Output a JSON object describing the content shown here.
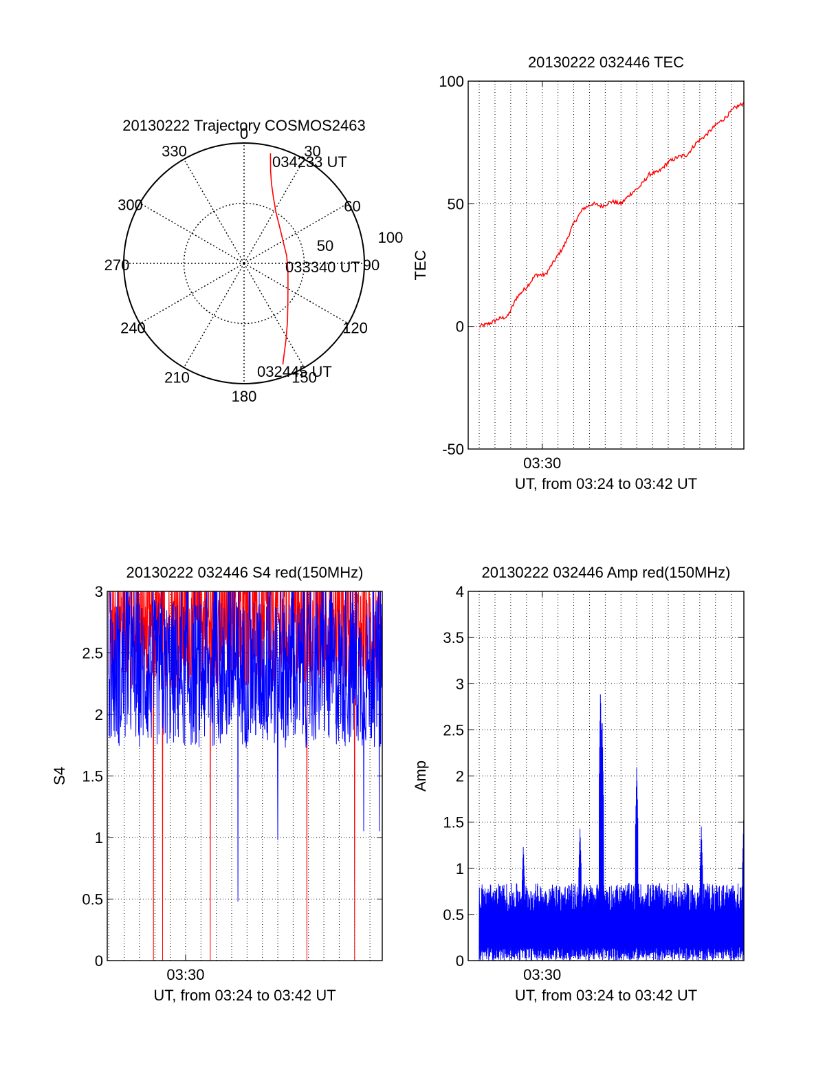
{
  "chart_data": [
    {
      "id": "polar",
      "type": "polar-trajectory",
      "title": "20130222 Trajectory COSMOS2463",
      "azimuth_labels": [
        "0",
        "30",
        "60",
        "90",
        "120",
        "150",
        "180",
        "210",
        "240",
        "270",
        "300",
        "330"
      ],
      "azimuth_values": [
        0,
        30,
        60,
        90,
        120,
        150,
        180,
        210,
        240,
        270,
        300,
        330
      ],
      "radial_labels": [
        "50",
        "100"
      ],
      "radial_values": [
        50,
        100
      ],
      "trajectory": {
        "color": "#ff0000",
        "points": [
          {
            "az": 13.5,
            "r": 94
          },
          {
            "az": 16.0,
            "r": 80
          },
          {
            "az": 19.0,
            "r": 70
          },
          {
            "az": 24.0,
            "r": 60
          },
          {
            "az": 32.0,
            "r": 50
          },
          {
            "az": 45.0,
            "r": 42
          },
          {
            "az": 62.0,
            "r": 37
          },
          {
            "az": 80.0,
            "r": 36
          },
          {
            "az": 100.0,
            "r": 37
          },
          {
            "az": 117.0,
            "r": 41
          },
          {
            "az": 132.0,
            "r": 49
          },
          {
            "az": 143.0,
            "r": 60
          },
          {
            "az": 151.0,
            "r": 72
          },
          {
            "az": 156.0,
            "r": 82
          },
          {
            "az": 159.0,
            "r": 90
          }
        ]
      },
      "annotations": [
        {
          "text": "034233 UT",
          "az": 16,
          "r": 88
        },
        {
          "text": "033340 UT",
          "az": 95,
          "r": 38
        },
        {
          "text": "032445 UT",
          "az": 160,
          "r": 95
        }
      ]
    },
    {
      "id": "tec",
      "type": "line",
      "title": "20130222 032446 TEC",
      "ylabel": "TEC",
      "xlabel": "UT, from 03:24 to 03:42 UT",
      "ylim": [
        -50,
        100
      ],
      "yticks": [
        "-50",
        "0",
        "50",
        "100"
      ],
      "ytick_values": [
        -50,
        0,
        50,
        100
      ],
      "xtick_label": "03:30",
      "xlim_minutes": [
        25.3,
        42.8
      ],
      "xtick_minutes": 30,
      "grid": true,
      "series": [
        {
          "color": "#ff0000",
          "x": [
            26.0,
            26.6,
            27.2,
            27.8,
            28.4,
            29.0,
            29.6,
            30.2,
            30.8,
            31.4,
            32.0,
            32.6,
            33.2,
            33.8,
            34.4,
            35.0,
            35.6,
            36.2,
            36.8,
            37.4,
            38.0,
            38.6,
            39.2,
            39.8,
            40.4,
            41.0,
            41.6,
            42.2,
            42.8
          ],
          "y": [
            0,
            1,
            3,
            4,
            12,
            16,
            21,
            21,
            27,
            33,
            42,
            48,
            50,
            49,
            51,
            50,
            54,
            57,
            62,
            63,
            67,
            69,
            70,
            75,
            78,
            82,
            85,
            89,
            91
          ]
        }
      ]
    },
    {
      "id": "s4",
      "type": "line",
      "title": "20130222 032446 S4 red(150MHz)",
      "ylabel": "S4",
      "xlabel": "UT, from 03:24 to 03:42 UT",
      "ylim": [
        0,
        3
      ],
      "yticks": [
        "0",
        "0.5",
        "1",
        "1.5",
        "2",
        "2.5",
        "3"
      ],
      "ytick_values": [
        0,
        0.5,
        1,
        1.5,
        2,
        2.5,
        3
      ],
      "xtick_label": "03:30",
      "xlim_minutes": [
        24.9,
        42.8
      ],
      "xtick_minutes": 30,
      "grid": true,
      "series": [
        {
          "color": "#ff0000",
          "x_range": [
            25.0,
            42.8
          ],
          "mean": 2.55,
          "spread": 0.45,
          "dips": [
            {
              "x": 27.9,
              "y": 0
            },
            {
              "x": 28.5,
              "y": 0
            },
            {
              "x": 31.6,
              "y": 0
            },
            {
              "x": 37.9,
              "y": 0
            },
            {
              "x": 41.0,
              "y": 0
            }
          ]
        },
        {
          "color": "#0000ff",
          "x_range": [
            25.0,
            42.8
          ],
          "mean": 2.15,
          "spread": 0.55,
          "dips": [
            {
              "x": 33.4,
              "y": 0.48
            },
            {
              "x": 36.0,
              "y": 0.98
            },
            {
              "x": 41.6,
              "y": 1.05
            },
            {
              "x": 42.6,
              "y": 1.05
            }
          ]
        }
      ]
    },
    {
      "id": "amp",
      "type": "line",
      "title": "20130222 032446 Amp red(150MHz)",
      "ylabel": "Amp",
      "xlabel": "UT, from 03:24 to 03:42 UT",
      "ylim": [
        0,
        4
      ],
      "yticks": [
        "0",
        "0.5",
        "1",
        "1.5",
        "2",
        "2.5",
        "3",
        "3.5",
        "4"
      ],
      "ytick_values": [
        0,
        0.5,
        1,
        1.5,
        2,
        2.5,
        3,
        3.5,
        4
      ],
      "xtick_label": "03:30",
      "xlim_minutes": [
        25.3,
        42.8
      ],
      "xtick_minutes": 30,
      "grid": true,
      "series": [
        {
          "color": "#0000ff",
          "x_range": [
            26.0,
            42.8
          ],
          "base_peak": 0.7,
          "spikes": [
            {
              "x": 33.7,
              "y": 2.98
            },
            {
              "x": 33.8,
              "y": 2.7
            },
            {
              "x": 36.0,
              "y": 2.12
            },
            {
              "x": 32.4,
              "y": 1.45
            },
            {
              "x": 40.1,
              "y": 1.45
            },
            {
              "x": 42.8,
              "y": 1.6
            },
            {
              "x": 28.8,
              "y": 1.25
            }
          ]
        }
      ]
    }
  ]
}
